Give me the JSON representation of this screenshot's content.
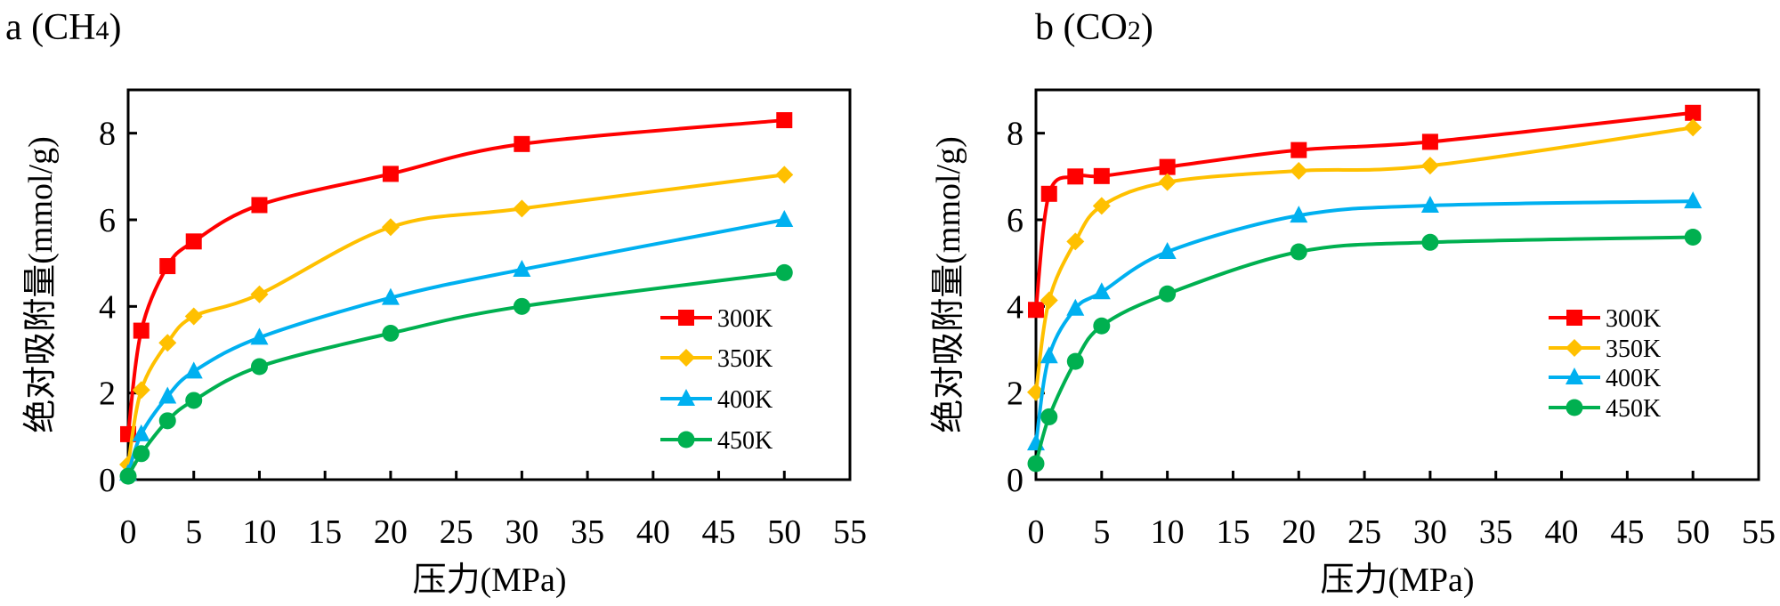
{
  "figure": {
    "panels": [
      "a",
      "b"
    ]
  },
  "chart_data": [
    {
      "type": "line",
      "title": "a (CH4)",
      "title_main": "a (CH",
      "title_sub": "4",
      "title_end": ")",
      "xlabel": "压力(MPa)",
      "ylabel": "绝对吸附量(mmol/g)",
      "xlim": [
        0,
        55
      ],
      "ylim": [
        0,
        9
      ],
      "xticks": [
        0,
        5,
        10,
        15,
        20,
        25,
        30,
        35,
        40,
        45,
        50,
        55
      ],
      "yticks": [
        0,
        2,
        4,
        6,
        8
      ],
      "grid": false,
      "smooth": true,
      "legend_position": "lower-right",
      "series": [
        {
          "name": "300K",
          "color": "#FF0000",
          "marker": "square",
          "x": [
            0,
            1,
            3,
            5,
            10,
            20,
            30,
            50
          ],
          "y": [
            1.05,
            3.44,
            4.93,
            5.5,
            6.34,
            7.06,
            7.75,
            8.3
          ]
        },
        {
          "name": "350K",
          "color": "#FFC000",
          "marker": "diamond",
          "x": [
            0,
            1,
            3,
            5,
            10,
            20,
            30,
            50
          ],
          "y": [
            0.35,
            2.07,
            3.16,
            3.77,
            4.28,
            5.83,
            6.26,
            7.04
          ]
        },
        {
          "name": "400K",
          "color": "#00B0F0",
          "marker": "triangle",
          "x": [
            0,
            1,
            3,
            5,
            10,
            20,
            30,
            50
          ],
          "y": [
            0.14,
            1.05,
            1.92,
            2.5,
            3.28,
            4.2,
            4.85,
            6.0
          ]
        },
        {
          "name": "450K",
          "color": "#00B050",
          "marker": "circle",
          "x": [
            0,
            1,
            3,
            5,
            10,
            20,
            30,
            50
          ],
          "y": [
            0.08,
            0.6,
            1.36,
            1.83,
            2.61,
            3.38,
            4.0,
            4.78
          ]
        }
      ]
    },
    {
      "type": "line",
      "title": "b (CO2)",
      "title_main": "b (CO",
      "title_sub": "2",
      "title_end": ")",
      "xlabel": "压力(MPa)",
      "ylabel": "绝对吸附量(mmol/g)",
      "xlim": [
        0,
        55
      ],
      "ylim": [
        0,
        9
      ],
      "xticks": [
        0,
        5,
        10,
        15,
        20,
        25,
        30,
        35,
        40,
        45,
        50,
        55
      ],
      "yticks": [
        0,
        2,
        4,
        6,
        8
      ],
      "grid": false,
      "smooth": true,
      "legend_position": "center-right",
      "series": [
        {
          "name": "300K",
          "color": "#FF0000",
          "marker": "square",
          "x": [
            0,
            1,
            3,
            5,
            10,
            20,
            30,
            50
          ],
          "y": [
            3.92,
            6.6,
            7.0,
            7.01,
            7.22,
            7.61,
            7.8,
            8.47
          ]
        },
        {
          "name": "350K",
          "color": "#FFC000",
          "marker": "diamond",
          "x": [
            0,
            1,
            3,
            5,
            10,
            20,
            30,
            50
          ],
          "y": [
            2.02,
            4.14,
            5.5,
            6.32,
            6.87,
            7.13,
            7.25,
            8.13
          ]
        },
        {
          "name": "400K",
          "color": "#00B0F0",
          "marker": "triangle",
          "x": [
            0,
            1,
            3,
            5,
            10,
            20,
            30,
            50
          ],
          "y": [
            0.84,
            2.85,
            3.95,
            4.33,
            5.26,
            6.1,
            6.33,
            6.43
          ]
        },
        {
          "name": "450K",
          "color": "#00B050",
          "marker": "circle",
          "x": [
            0,
            1,
            3,
            5,
            10,
            20,
            30,
            50
          ],
          "y": [
            0.37,
            1.45,
            2.73,
            3.55,
            4.29,
            5.26,
            5.48,
            5.6
          ]
        }
      ]
    }
  ]
}
